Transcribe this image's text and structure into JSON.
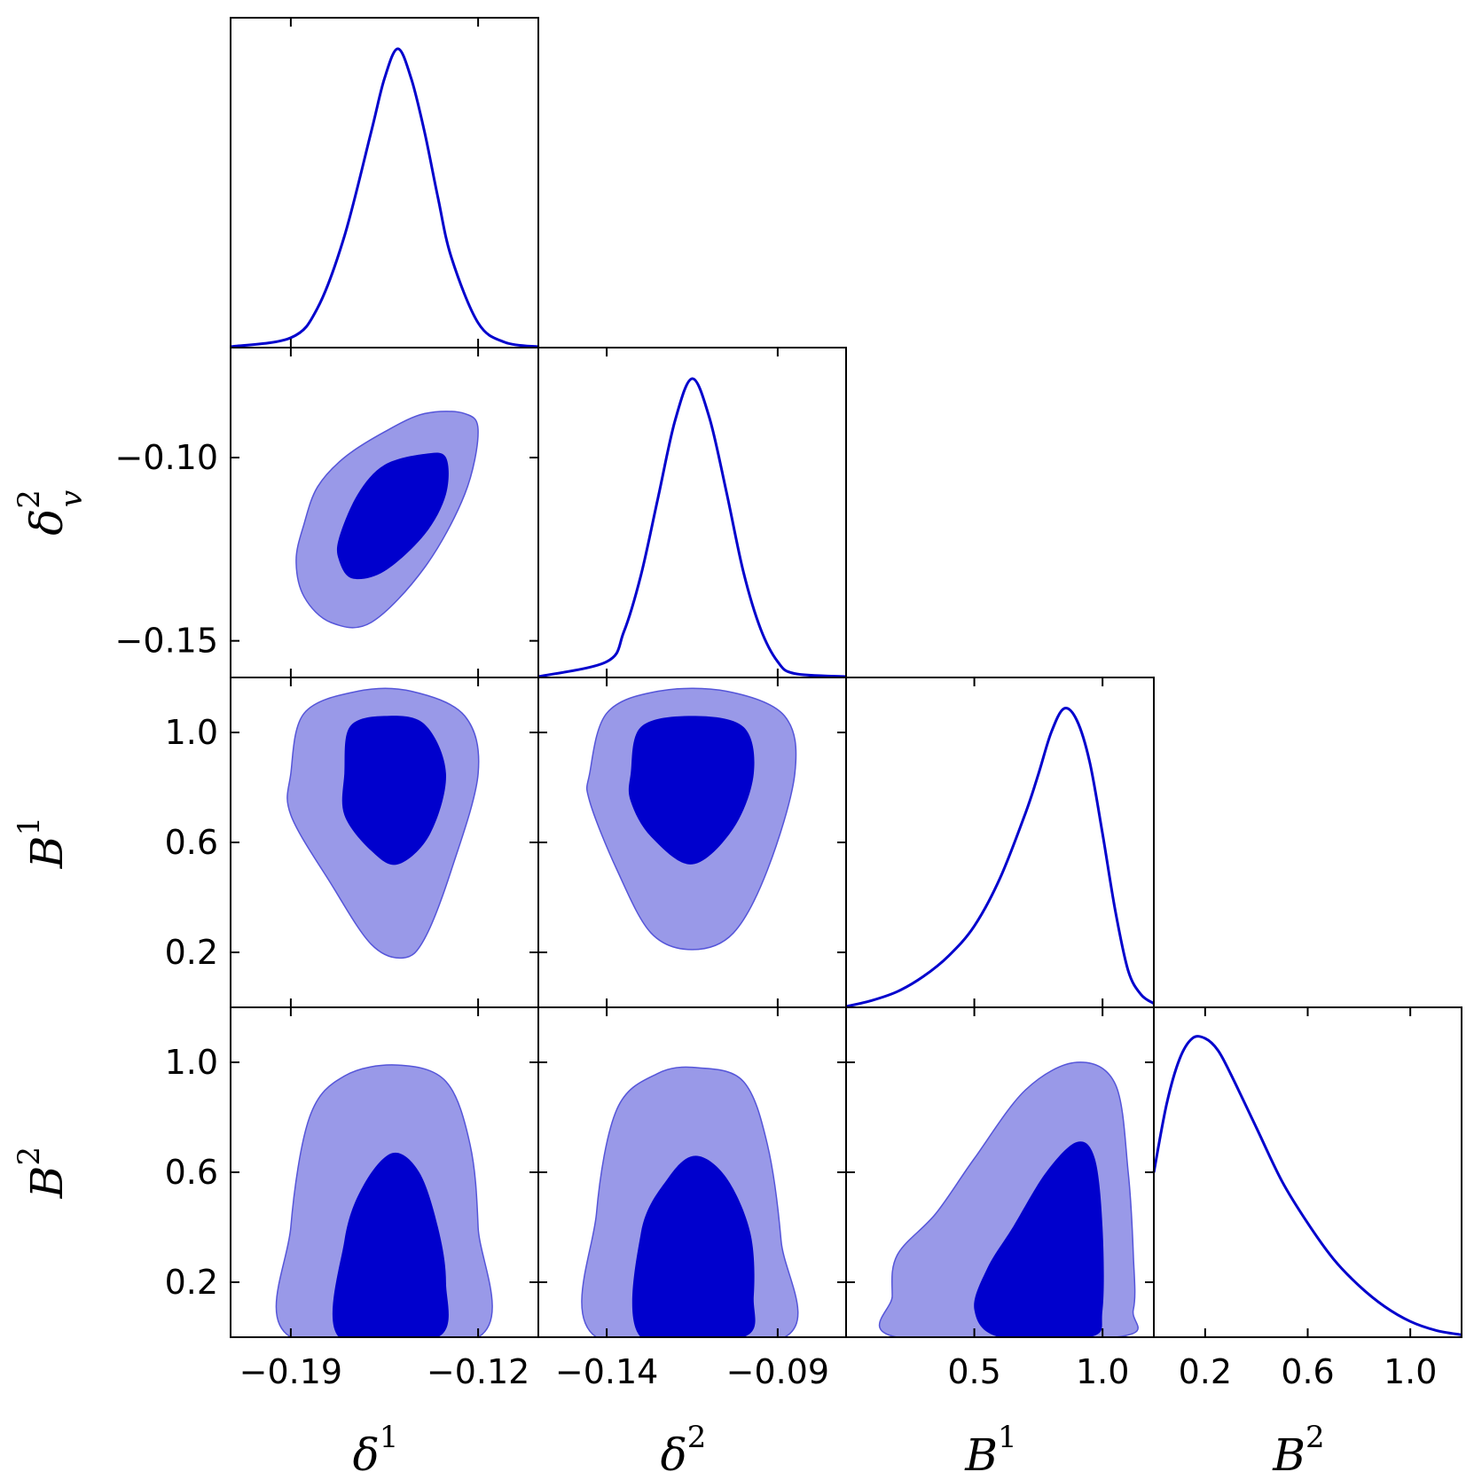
{
  "chart_data": {
    "type": "corner",
    "description_params": [
      "δv1",
      "δv2",
      "B1",
      "B2"
    ],
    "colors": {
      "inner_contour": "#0000CD",
      "outer_contour": "#9999E8",
      "outer_edge": "#5555D9",
      "marginal_line": "#0000CD",
      "frame": "#000000"
    },
    "parameters": [
      {
        "key": "dv1",
        "label_base": "δ",
        "label_sup": "1",
        "label_sub": "v",
        "range": [
          -0.2125,
          -0.0975
        ],
        "ticks": [
          -0.19,
          -0.12
        ],
        "tick_labels": [
          "−0.19",
          "−0.12"
        ]
      },
      {
        "key": "dv2",
        "label_base": "δ",
        "label_sup": "2",
        "label_sub": "v",
        "range": [
          -0.16,
          -0.07
        ],
        "ticks": [
          -0.14,
          -0.09
        ],
        "tick_labels": [
          "−0.14",
          "−0.09"
        ],
        "y_ticks": [
          -0.1,
          -0.15
        ],
        "y_tick_labels": [
          "−0.10",
          "−0.15"
        ]
      },
      {
        "key": "b1",
        "label_base": "B",
        "label_sup": "1",
        "label_sub": "",
        "range": [
          0.0,
          1.2
        ],
        "ticks": [
          0.5,
          1.0
        ],
        "tick_labels": [
          "0.5",
          "1.0"
        ],
        "y_ticks": [
          1.0,
          0.6,
          0.2
        ],
        "y_tick_labels": [
          "1.0",
          "0.6",
          "0.2"
        ]
      },
      {
        "key": "b2",
        "label_base": "B",
        "label_sup": "2",
        "label_sub": "",
        "range": [
          0.0,
          1.2
        ],
        "ticks": [
          0.2,
          0.6,
          1.0
        ],
        "tick_labels": [
          "0.2",
          "0.6",
          "1.0"
        ],
        "y_ticks": [
          1.0,
          0.6,
          0.2
        ],
        "y_tick_labels": [
          "1.0",
          "0.6",
          "0.2"
        ]
      }
    ],
    "marginals": [
      {
        "param": "dv1",
        "x": [
          -0.2125,
          -0.19,
          -0.18,
          -0.17,
          -0.16,
          -0.155,
          -0.15,
          -0.145,
          -0.14,
          -0.135,
          -0.13,
          -0.12,
          -0.11,
          -0.0975
        ],
        "y": [
          0.0,
          0.03,
          0.13,
          0.37,
          0.72,
          0.9,
          1.0,
          0.9,
          0.72,
          0.5,
          0.3,
          0.08,
          0.015,
          0.0
        ]
      },
      {
        "param": "dv2",
        "x": [
          -0.16,
          -0.14,
          -0.135,
          -0.13,
          -0.125,
          -0.12,
          -0.115,
          -0.11,
          -0.105,
          -0.1,
          -0.095,
          -0.09,
          -0.085,
          -0.07
        ],
        "y": [
          0.0,
          0.05,
          0.15,
          0.34,
          0.6,
          0.86,
          1.0,
          0.87,
          0.62,
          0.35,
          0.16,
          0.05,
          0.01,
          0.0
        ]
      },
      {
        "param": "b1",
        "x": [
          0.0,
          0.1,
          0.2,
          0.3,
          0.4,
          0.5,
          0.6,
          0.7,
          0.75,
          0.8,
          0.85,
          0.9,
          0.95,
          1.0,
          1.05,
          1.1,
          1.15,
          1.2
        ],
        "y": [
          0.0,
          0.02,
          0.05,
          0.1,
          0.17,
          0.27,
          0.43,
          0.65,
          0.78,
          0.92,
          1.0,
          0.96,
          0.82,
          0.58,
          0.32,
          0.12,
          0.04,
          0.01
        ]
      },
      {
        "param": "b2",
        "x": [
          0.0,
          0.05,
          0.1,
          0.15,
          0.2,
          0.25,
          0.3,
          0.4,
          0.5,
          0.6,
          0.7,
          0.8,
          0.9,
          1.0,
          1.1,
          1.2
        ],
        "y": [
          0.55,
          0.78,
          0.93,
          1.0,
          1.0,
          0.96,
          0.88,
          0.7,
          0.52,
          0.38,
          0.26,
          0.17,
          0.1,
          0.05,
          0.02,
          0.005
        ]
      }
    ],
    "contours_2d": [
      {
        "x_param": "dv1",
        "y_param": "dv2",
        "outer": [
          [
            -0.185,
            -0.118
          ],
          [
            -0.18,
            -0.108
          ],
          [
            -0.17,
            -0.1
          ],
          [
            -0.155,
            -0.093
          ],
          [
            -0.14,
            -0.088
          ],
          [
            -0.125,
            -0.088
          ],
          [
            -0.12,
            -0.093
          ],
          [
            -0.125,
            -0.11
          ],
          [
            -0.14,
            -0.13
          ],
          [
            -0.16,
            -0.145
          ],
          [
            -0.175,
            -0.145
          ],
          [
            -0.185,
            -0.138
          ],
          [
            -0.188,
            -0.128
          ]
        ],
        "inner": [
          [
            -0.172,
            -0.122
          ],
          [
            -0.165,
            -0.11
          ],
          [
            -0.155,
            -0.102
          ],
          [
            -0.14,
            -0.099
          ],
          [
            -0.132,
            -0.1
          ],
          [
            -0.132,
            -0.11
          ],
          [
            -0.14,
            -0.121
          ],
          [
            -0.155,
            -0.131
          ],
          [
            -0.167,
            -0.133
          ],
          [
            -0.172,
            -0.128
          ]
        ]
      },
      {
        "x_param": "dv1",
        "y_param": "b1",
        "outer": [
          [
            -0.19,
            0.85
          ],
          [
            -0.185,
            1.07
          ],
          [
            -0.165,
            1.15
          ],
          [
            -0.145,
            1.15
          ],
          [
            -0.125,
            1.06
          ],
          [
            -0.12,
            0.85
          ],
          [
            -0.13,
            0.5
          ],
          [
            -0.14,
            0.25
          ],
          [
            -0.148,
            0.18
          ],
          [
            -0.16,
            0.23
          ],
          [
            -0.175,
            0.45
          ],
          [
            -0.19,
            0.7
          ]
        ],
        "inner": [
          [
            -0.17,
            0.85
          ],
          [
            -0.168,
            1.02
          ],
          [
            -0.155,
            1.06
          ],
          [
            -0.14,
            1.03
          ],
          [
            -0.132,
            0.85
          ],
          [
            -0.138,
            0.63
          ],
          [
            -0.15,
            0.52
          ],
          [
            -0.16,
            0.57
          ],
          [
            -0.17,
            0.7
          ]
        ]
      },
      {
        "x_param": "dv2",
        "y_param": "b1",
        "outer": [
          [
            -0.145,
            0.85
          ],
          [
            -0.14,
            1.07
          ],
          [
            -0.125,
            1.15
          ],
          [
            -0.105,
            1.15
          ],
          [
            -0.088,
            1.06
          ],
          [
            -0.085,
            0.85
          ],
          [
            -0.093,
            0.5
          ],
          [
            -0.103,
            0.27
          ],
          [
            -0.115,
            0.21
          ],
          [
            -0.127,
            0.27
          ],
          [
            -0.137,
            0.5
          ],
          [
            -0.145,
            0.75
          ]
        ],
        "inner": [
          [
            -0.133,
            0.85
          ],
          [
            -0.13,
            1.02
          ],
          [
            -0.115,
            1.06
          ],
          [
            -0.1,
            1.02
          ],
          [
            -0.097,
            0.85
          ],
          [
            -0.103,
            0.65
          ],
          [
            -0.115,
            0.52
          ],
          [
            -0.127,
            0.62
          ],
          [
            -0.133,
            0.75
          ]
        ]
      },
      {
        "x_param": "dv1",
        "y_param": "b2",
        "outer": [
          [
            -0.19,
            0.0
          ],
          [
            -0.19,
            0.4
          ],
          [
            -0.183,
            0.8
          ],
          [
            -0.17,
            0.95
          ],
          [
            -0.15,
            0.99
          ],
          [
            -0.132,
            0.93
          ],
          [
            -0.123,
            0.7
          ],
          [
            -0.12,
            0.4
          ],
          [
            -0.12,
            0.0
          ]
        ],
        "inner": [
          [
            -0.172,
            0.0
          ],
          [
            -0.17,
            0.35
          ],
          [
            -0.163,
            0.55
          ],
          [
            -0.152,
            0.67
          ],
          [
            -0.142,
            0.6
          ],
          [
            -0.135,
            0.4
          ],
          [
            -0.132,
            0.2
          ],
          [
            -0.135,
            0.0
          ]
        ]
      },
      {
        "x_param": "dv2",
        "y_param": "b2",
        "outer": [
          [
            -0.143,
            0.0
          ],
          [
            -0.143,
            0.45
          ],
          [
            -0.137,
            0.83
          ],
          [
            -0.125,
            0.96
          ],
          [
            -0.113,
            0.98
          ],
          [
            -0.1,
            0.93
          ],
          [
            -0.093,
            0.7
          ],
          [
            -0.089,
            0.35
          ],
          [
            -0.088,
            0.0
          ]
        ],
        "inner": [
          [
            -0.13,
            0.0
          ],
          [
            -0.13,
            0.38
          ],
          [
            -0.122,
            0.58
          ],
          [
            -0.114,
            0.66
          ],
          [
            -0.105,
            0.58
          ],
          [
            -0.098,
            0.38
          ],
          [
            -0.097,
            0.15
          ],
          [
            -0.1,
            0.0
          ]
        ]
      },
      {
        "x_param": "b1",
        "y_param": "b2",
        "outer": [
          [
            0.2,
            0.0
          ],
          [
            0.18,
            0.15
          ],
          [
            0.2,
            0.3
          ],
          [
            0.35,
            0.45
          ],
          [
            0.5,
            0.65
          ],
          [
            0.7,
            0.9
          ],
          [
            0.9,
            1.0
          ],
          [
            1.05,
            0.92
          ],
          [
            1.1,
            0.6
          ],
          [
            1.12,
            0.3
          ],
          [
            1.12,
            0.1
          ],
          [
            1.05,
            0.0
          ]
        ],
        "inner": [
          [
            0.6,
            0.0
          ],
          [
            0.5,
            0.1
          ],
          [
            0.55,
            0.25
          ],
          [
            0.65,
            0.4
          ],
          [
            0.78,
            0.6
          ],
          [
            0.9,
            0.71
          ],
          [
            0.97,
            0.65
          ],
          [
            1.0,
            0.4
          ],
          [
            1.0,
            0.1
          ],
          [
            0.95,
            0.0
          ]
        ]
      }
    ]
  }
}
